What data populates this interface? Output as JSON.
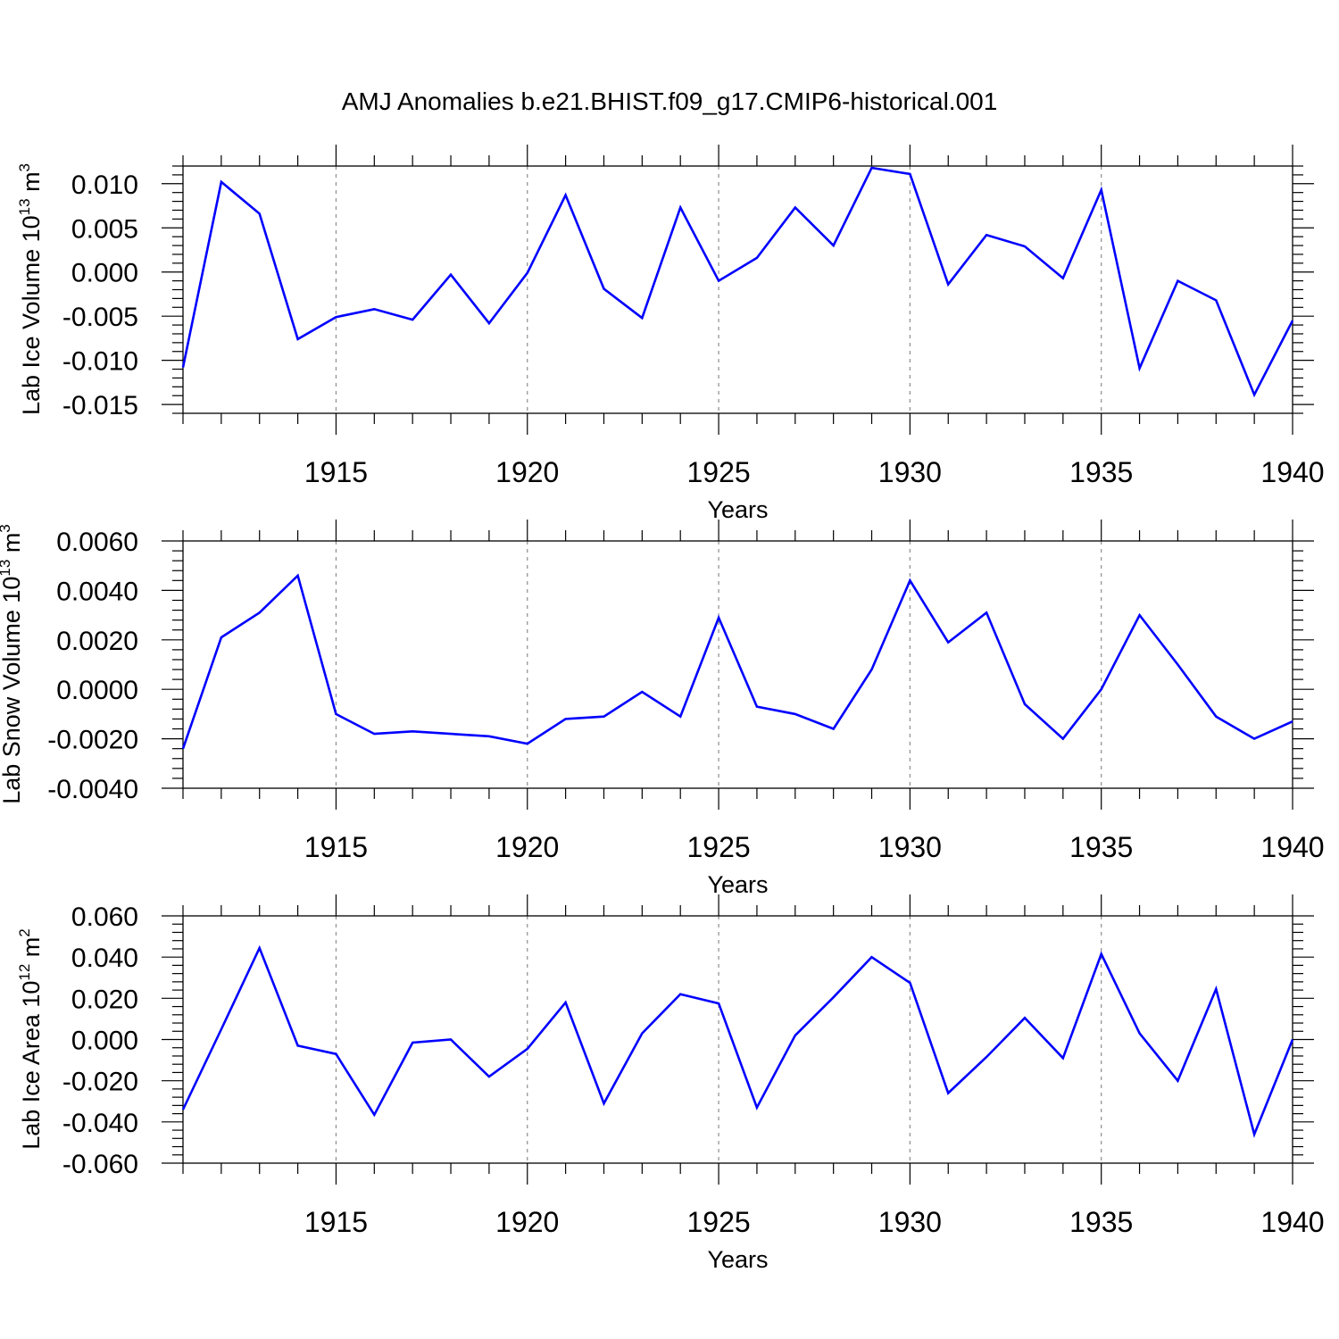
{
  "title": "AMJ Anomalies b.e21.BHIST.f09_g17.CMIP6-historical.001",
  "colors": {
    "line": "#0000ff",
    "axis": "#000000",
    "grid": "#8c8c8c"
  },
  "chart_data": [
    {
      "type": "line",
      "ylabel": "Lab Ice Volume 10",
      "ylabel_exp": "13",
      "ylabel_unit": " m",
      "ylabel_unit_exp": "3",
      "xlabel": "Years",
      "xlim": [
        1911,
        1940
      ],
      "ylim": [
        -0.016,
        0.012
      ],
      "yticks": [
        -0.015,
        -0.01,
        -0.005,
        0.0,
        0.005,
        0.01
      ],
      "ytick_labels": [
        "-0.015",
        "-0.010",
        "-0.005",
        "0.000",
        "0.005",
        "0.010"
      ],
      "xticks": [
        1915,
        1920,
        1925,
        1930,
        1935,
        1940
      ],
      "xtick_labels": [
        "1915",
        "1920",
        "1925",
        "1930",
        "1935",
        "1940"
      ],
      "grid": "vertical dashed at major ticks",
      "series": [
        {
          "x": [
            1911,
            1912,
            1913,
            1914,
            1915,
            1916,
            1917,
            1918,
            1919,
            1920,
            1921,
            1922,
            1923,
            1924,
            1925,
            1926,
            1927,
            1928,
            1929,
            1930,
            1931,
            1932,
            1933,
            1934,
            1935,
            1936,
            1937,
            1938,
            1939,
            1940
          ],
          "values": [
            -0.0108,
            0.0102,
            0.0066,
            -0.0076,
            -0.0051,
            -0.0042,
            -0.0054,
            -0.0003,
            -0.0058,
            -0.0001,
            0.0087,
            -0.0019,
            -0.0052,
            0.0073,
            -0.001,
            0.0016,
            0.0073,
            0.003,
            0.0118,
            0.0111,
            -0.0014,
            0.0042,
            0.0029,
            -0.0007,
            0.0093,
            -0.0109,
            -0.001,
            -0.0032,
            -0.0139,
            -0.0055
          ]
        }
      ]
    },
    {
      "type": "line",
      "ylabel": "Lab Snow Volume 10",
      "ylabel_exp": "13",
      "ylabel_unit": " m",
      "ylabel_unit_exp": "3",
      "xlabel": "Years",
      "xlim": [
        1911,
        1940
      ],
      "ylim": [
        -0.004,
        0.006
      ],
      "yticks": [
        -0.004,
        -0.002,
        0.0,
        0.002,
        0.004,
        0.006
      ],
      "ytick_labels": [
        "-0.0040",
        "-0.0020",
        "0.0000",
        "0.0020",
        "0.0040",
        "0.0060"
      ],
      "xticks": [
        1915,
        1920,
        1925,
        1930,
        1935,
        1940
      ],
      "xtick_labels": [
        "1915",
        "1920",
        "1925",
        "1930",
        "1935",
        "1940"
      ],
      "grid": "vertical dashed at major ticks",
      "series": [
        {
          "x": [
            1911,
            1912,
            1913,
            1914,
            1915,
            1916,
            1917,
            1918,
            1919,
            1920,
            1921,
            1922,
            1923,
            1924,
            1925,
            1926,
            1927,
            1928,
            1929,
            1930,
            1931,
            1932,
            1933,
            1934,
            1935,
            1936,
            1937,
            1938,
            1939,
            1940
          ],
          "values": [
            -0.0024,
            0.0021,
            0.0031,
            0.0046,
            -0.001,
            -0.0018,
            -0.0017,
            -0.0018,
            -0.0019,
            -0.0022,
            -0.0012,
            -0.0011,
            -0.0001,
            -0.0011,
            0.0029,
            -0.0007,
            -0.001,
            -0.0016,
            0.0008,
            0.0044,
            0.0019,
            0.0031,
            -0.0006,
            -0.002,
            0.0,
            0.003,
            0.001,
            -0.0011,
            -0.002,
            -0.0013
          ]
        }
      ]
    },
    {
      "type": "line",
      "ylabel": "Lab Ice Area 10",
      "ylabel_exp": "12",
      "ylabel_unit": " m",
      "ylabel_unit_exp": "2",
      "xlabel": "Years",
      "xlim": [
        1911,
        1940
      ],
      "ylim": [
        -0.06,
        0.06
      ],
      "yticks": [
        -0.06,
        -0.04,
        -0.02,
        0.0,
        0.02,
        0.04,
        0.06
      ],
      "ytick_labels": [
        "-0.060",
        "-0.040",
        "-0.020",
        "0.000",
        "0.020",
        "0.040",
        "0.060"
      ],
      "xticks": [
        1915,
        1920,
        1925,
        1930,
        1935,
        1940
      ],
      "xtick_labels": [
        "1915",
        "1920",
        "1925",
        "1930",
        "1935",
        "1940"
      ],
      "grid": "vertical dashed at major ticks",
      "series": [
        {
          "x": [
            1911,
            1912,
            1913,
            1914,
            1915,
            1916,
            1917,
            1918,
            1919,
            1920,
            1921,
            1922,
            1923,
            1924,
            1925,
            1926,
            1927,
            1928,
            1929,
            1930,
            1931,
            1932,
            1933,
            1934,
            1935,
            1936,
            1937,
            1938,
            1939,
            1940
          ],
          "values": [
            -0.034,
            0.005,
            0.0444,
            -0.003,
            -0.007,
            -0.0365,
            -0.0015,
            0.0,
            -0.018,
            -0.0045,
            0.018,
            -0.031,
            0.003,
            0.022,
            0.0175,
            -0.033,
            0.002,
            0.0205,
            0.04,
            0.0275,
            -0.026,
            -0.0085,
            0.0105,
            -0.009,
            0.0415,
            0.003,
            -0.02,
            0.0245,
            -0.046,
            0.0
          ]
        }
      ]
    }
  ]
}
